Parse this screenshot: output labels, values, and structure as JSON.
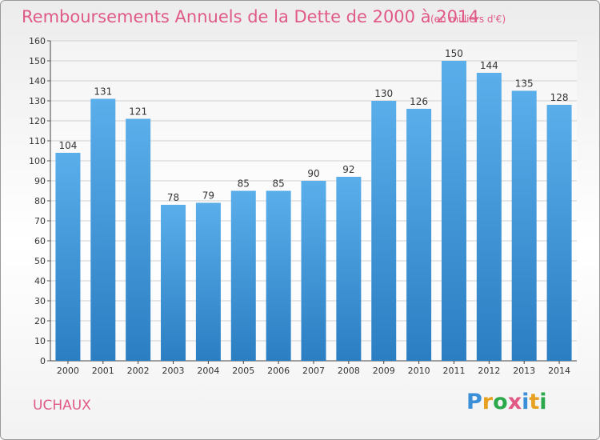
{
  "header": {
    "title": "Remboursements Annuels de la Dette de 2000 à 2014",
    "unit": "(en milliers d'€)"
  },
  "footer": {
    "commune": "UCHAUX",
    "logo_text": "Proxiti"
  },
  "colors": {
    "title": "#e05a86",
    "bar_top": "#5aaeea",
    "bar_bottom": "#2b7ec2",
    "grid": "#d0d0d0",
    "logo": [
      "#3a8fd8",
      "#e8a020",
      "#2aa84a",
      "#e05a86",
      "#3a8fd8",
      "#e8a020",
      "#2aa84a"
    ]
  },
  "chart_data": {
    "type": "bar",
    "title": "Remboursements Annuels de la Dette de 2000 à 2014",
    "ylabel": "",
    "xlabel": "",
    "categories": [
      "2000",
      "2001",
      "2002",
      "2003",
      "2004",
      "2005",
      "2006",
      "2007",
      "2008",
      "2009",
      "2010",
      "2011",
      "2012",
      "2013",
      "2014"
    ],
    "values": [
      104,
      131,
      121,
      78,
      79,
      85,
      85,
      90,
      92,
      130,
      126,
      150,
      144,
      135,
      128
    ],
    "ylim": [
      0,
      160
    ],
    "yticks": [
      0,
      10,
      20,
      30,
      40,
      50,
      60,
      70,
      80,
      90,
      100,
      110,
      120,
      130,
      140,
      150,
      160
    ],
    "grid": true
  }
}
